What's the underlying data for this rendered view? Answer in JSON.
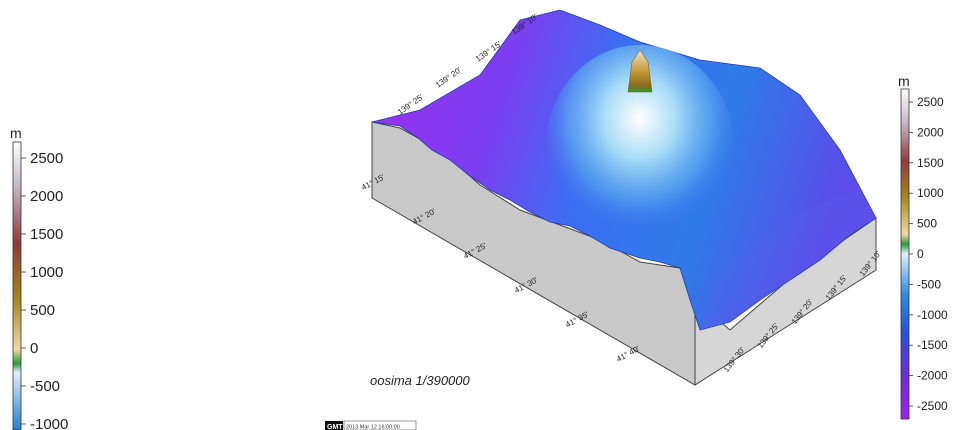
{
  "left_colorbar": {
    "unit": "m",
    "ticks": [
      "2500",
      "2000",
      "1500",
      "1000",
      "500",
      "0",
      "-500",
      "-1000"
    ]
  },
  "right_colorbar": {
    "unit": "m",
    "ticks": [
      "2500",
      "2000",
      "1500",
      "1000",
      "500",
      "0",
      "-500",
      "-1000",
      "-1500",
      "-2000",
      "-2500"
    ]
  },
  "map": {
    "caption": "oosima  1/390000",
    "latitude_labels": [
      "41° 15'",
      "41° 20'",
      "41° 25'",
      "41° 30'",
      "41° 35'",
      "41° 40'"
    ],
    "longitude_labels_top": [
      "139° 25'",
      "139° 20'",
      "139° 15'",
      "139° 10'"
    ],
    "longitude_labels_right": [
      "139° 10'",
      "139° 15'",
      "139° 20'",
      "139° 25'",
      "139° 30'"
    ],
    "colors": {
      "deep": "#8a2be2",
      "mid": "#3a6ef0",
      "shallow": "#9fd4f5",
      "peak": "#b8860b",
      "wall": "#c9c9c9"
    }
  },
  "stamp": {
    "logo": "GMT",
    "timestamp": "2013 Mar 12  16:00:00"
  }
}
